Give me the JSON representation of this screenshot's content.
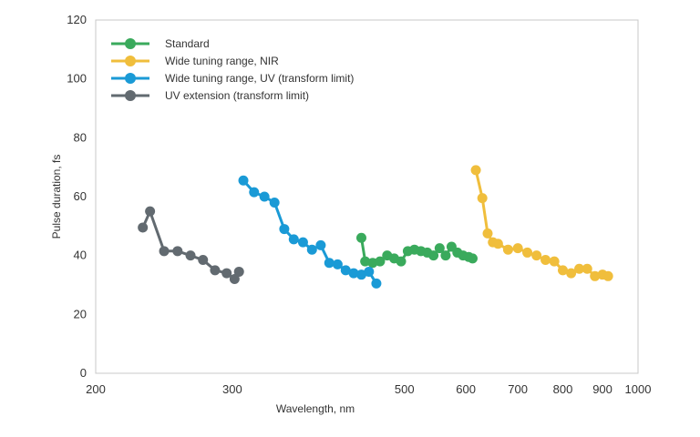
{
  "chart_data": {
    "type": "line",
    "xlabel": "Wavelength, nm",
    "ylabel": "Pulse duration, fs",
    "xscale": "log",
    "xlim": [
      200,
      1000
    ],
    "ylim": [
      0,
      120
    ],
    "xticks": [
      200,
      300,
      500,
      600,
      700,
      800,
      900,
      1000
    ],
    "yticks": [
      0,
      20,
      40,
      60,
      80,
      100,
      120
    ],
    "grid": false,
    "legend_position": "top-left",
    "series": [
      {
        "name": "Standard",
        "color": "#3aaa5c",
        "x": [
          440,
          445,
          455,
          465,
          475,
          485,
          495,
          505,
          515,
          525,
          535,
          545,
          555,
          565,
          575,
          585,
          595,
          605,
          612
        ],
        "y": [
          46,
          38,
          37.5,
          38,
          40,
          39,
          38,
          41.5,
          42,
          41.5,
          41,
          40,
          42.5,
          40,
          43,
          41,
          40,
          39.5,
          39
        ]
      },
      {
        "name": "Wide tuning range, NIR",
        "color": "#f0be3c",
        "x": [
          618,
          630,
          640,
          650,
          660,
          680,
          700,
          720,
          740,
          760,
          780,
          800,
          820,
          840,
          860,
          880,
          900,
          915
        ],
        "y": [
          69,
          59.5,
          47.5,
          44.5,
          44,
          42,
          42.5,
          41,
          40,
          38.5,
          38,
          35,
          34,
          35.5,
          35.5,
          33,
          33.5,
          33
        ]
      },
      {
        "name": "Wide tuning range, UV (transform limit)",
        "color": "#1a9ad6",
        "x": [
          310,
          320,
          330,
          340,
          350,
          360,
          370,
          380,
          390,
          400,
          410,
          420,
          430,
          440,
          450,
          460
        ],
        "y": [
          65.5,
          61.5,
          60,
          58,
          49,
          45.5,
          44.5,
          42,
          43.5,
          37.5,
          37,
          35,
          34,
          33.5,
          34.5,
          30.5
        ]
      },
      {
        "name": "UV extension (transform limit)",
        "color": "#626a70",
        "x": [
          230,
          235,
          245,
          255,
          265,
          275,
          285,
          295,
          302,
          306
        ],
        "y": [
          49.5,
          55,
          41.5,
          41.5,
          40,
          38.5,
          35,
          34,
          32,
          34.5
        ]
      }
    ]
  }
}
